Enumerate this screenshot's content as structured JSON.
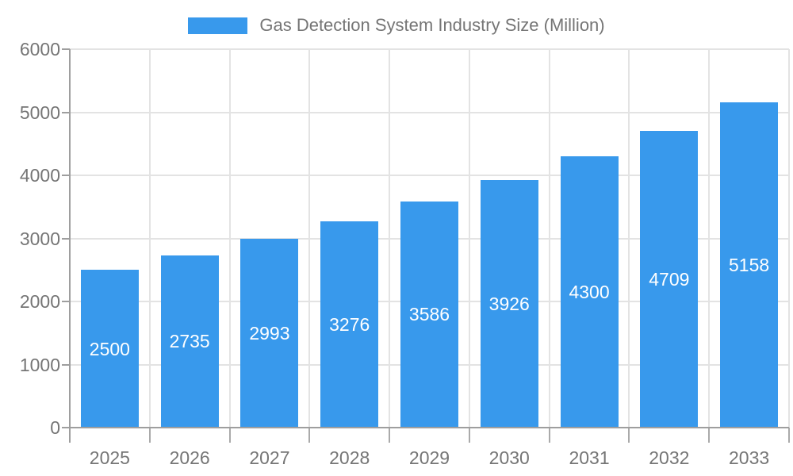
{
  "chart_data": {
    "type": "bar",
    "legend_label": "Gas Detection System Industry Size (Million)",
    "categories": [
      "2025",
      "2026",
      "2027",
      "2028",
      "2029",
      "2030",
      "2031",
      "2032",
      "2033"
    ],
    "series": [
      {
        "name": "Gas Detection System Industry Size (Million)",
        "values": [
          2500,
          2735,
          2993,
          3276,
          3586,
          3926,
          4300,
          4709,
          5158
        ]
      }
    ],
    "ylim": [
      0,
      6000
    ],
    "ytick_step": 1000,
    "ytick_labels": [
      "0",
      "1000",
      "2000",
      "3000",
      "4000",
      "5000",
      "6000"
    ],
    "grid": true,
    "legend_position": "top-center",
    "bar_labels_visible": true,
    "colors": {
      "bar": "#3899EC",
      "bar_label_text": "#FFFFFF",
      "axis_text": "#757575",
      "axis_line": "#9E9E9E",
      "boundary_tick": "#AAAAAA",
      "gridline": "#E3E3E3",
      "background": "#FFFFFF"
    }
  }
}
